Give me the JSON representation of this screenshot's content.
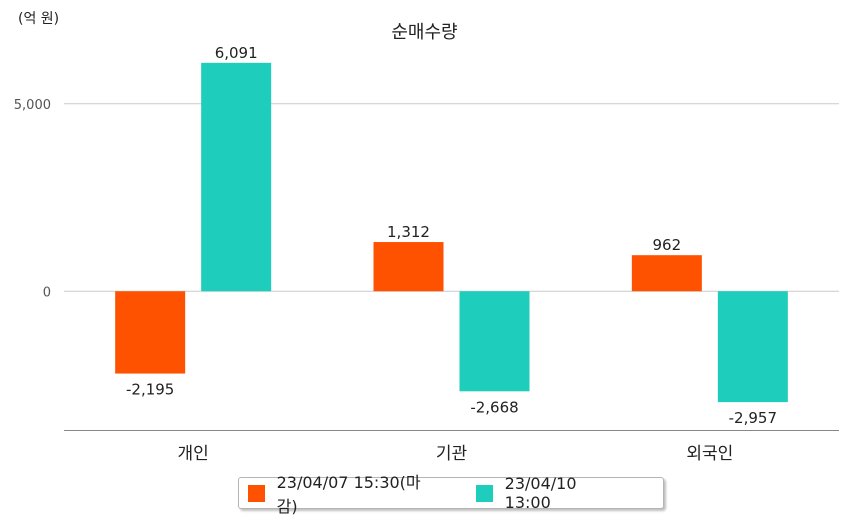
{
  "unit_label": "(억 원)",
  "colors": {
    "series1": "#ff5200",
    "series2": "#1ecdbb",
    "grid": "#cccccc",
    "axis": "#888888"
  },
  "chart_data": {
    "type": "bar",
    "title": "순매수량",
    "xlabel": "",
    "ylabel": "",
    "categories": [
      "개인",
      "기관",
      "외국인"
    ],
    "series": [
      {
        "name": "23/04/07 15:30(마감)",
        "values": [
          -2195,
          1312,
          962
        ],
        "labels": [
          "-2,195",
          "1,312",
          "962"
        ]
      },
      {
        "name": "23/04/10 13:00",
        "values": [
          6091,
          -2668,
          -2957
        ],
        "labels": [
          "6,091",
          "-2,668",
          "-2,957"
        ]
      }
    ],
    "yticks": [
      0,
      5000
    ],
    "ytick_labels": [
      "0",
      "5,000"
    ],
    "ylim": [
      -3700,
      6700
    ],
    "grid": true,
    "legend": "bottom"
  }
}
